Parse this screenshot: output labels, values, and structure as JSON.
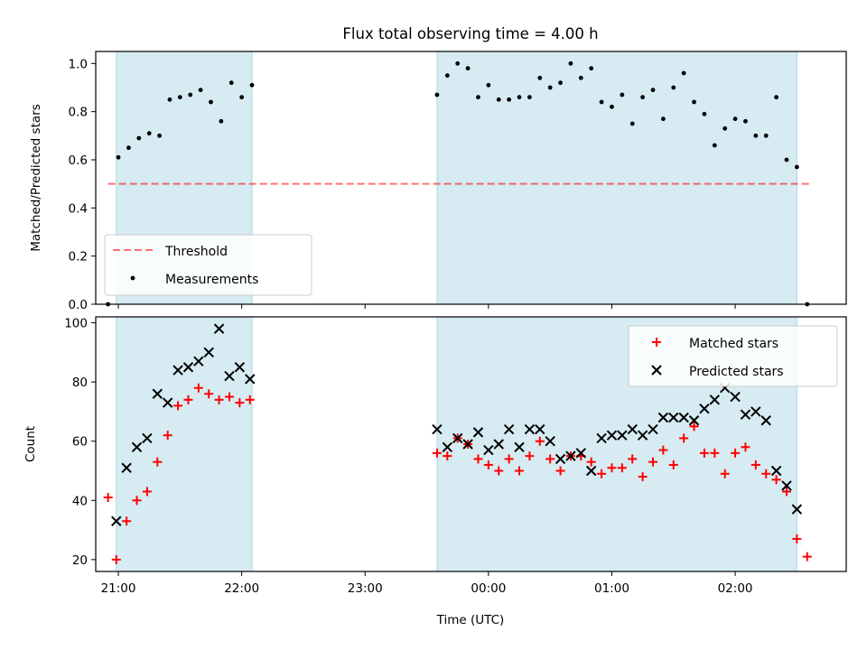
{
  "figure": {
    "title": "Flux total observing time = 4.00 h",
    "xlabel": "Time (UTC)"
  },
  "colors": {
    "shade": "#add8e6",
    "threshold": "#ff0000",
    "measurements": "#000000",
    "matched": "#ff0000",
    "predicted": "#000000"
  },
  "chart_data": [
    {
      "type": "scatter",
      "ylabel": "Matched/Predicted stars",
      "xlim": [
        "20:49",
        "02:54"
      ],
      "ylim": [
        0,
        1.05
      ],
      "yticks": [
        0.0,
        0.2,
        0.4,
        0.6,
        0.8,
        1.0
      ],
      "ytick_labels": [
        "0.0",
        "0.2",
        "0.4",
        "0.6",
        "0.8",
        "1.0"
      ],
      "xticks": [
        "21:00",
        "22:00",
        "23:00",
        "00:00",
        "01:00",
        "02:00"
      ],
      "legend": {
        "location": "lower-left",
        "entries": [
          "Threshold",
          "Measurements"
        ]
      },
      "shaded_intervals": [
        [
          "20:59",
          "22:05"
        ],
        [
          "23:35",
          "02:30"
        ]
      ],
      "threshold": {
        "name": "Threshold",
        "value": 0.5,
        "x_range": [
          "20:55",
          "02:36"
        ]
      },
      "series": [
        {
          "name": "Measurements",
          "x": [
            "20:55",
            "21:00",
            "21:05",
            "21:10",
            "21:15",
            "21:20",
            "21:25",
            "21:30",
            "21:35",
            "21:40",
            "21:45",
            "21:50",
            "21:55",
            "22:00",
            "22:05",
            "23:35",
            "23:40",
            "23:45",
            "23:50",
            "23:55",
            "00:00",
            "00:05",
            "00:10",
            "00:15",
            "00:20",
            "00:25",
            "00:30",
            "00:35",
            "00:40",
            "00:45",
            "00:50",
            "00:55",
            "01:00",
            "01:05",
            "01:10",
            "01:15",
            "01:20",
            "01:25",
            "01:30",
            "01:35",
            "01:40",
            "01:45",
            "01:50",
            "01:55",
            "02:00",
            "02:05",
            "02:10",
            "02:15",
            "02:20",
            "02:25",
            "02:30",
            "02:35"
          ],
          "y": [
            0.0,
            0.61,
            0.65,
            0.69,
            0.71,
            0.7,
            0.85,
            0.86,
            0.87,
            0.89,
            0.84,
            0.76,
            0.92,
            0.86,
            0.91,
            0.87,
            0.95,
            1.0,
            0.98,
            0.86,
            0.91,
            0.85,
            0.85,
            0.86,
            0.86,
            0.94,
            0.9,
            0.92,
            1.0,
            0.94,
            0.98,
            0.84,
            0.82,
            0.87,
            0.75,
            0.86,
            0.89,
            0.77,
            0.9,
            0.96,
            0.84,
            0.79,
            0.66,
            0.73,
            0.77,
            0.76,
            0.7,
            0.7,
            0.86,
            0.6,
            0.57,
            0.0
          ]
        }
      ]
    },
    {
      "type": "scatter",
      "ylabel": "Count",
      "xlabel": "Time (UTC)",
      "xlim": [
        "20:49",
        "02:54"
      ],
      "ylim": [
        16,
        102
      ],
      "yticks": [
        20,
        40,
        60,
        80,
        100
      ],
      "ytick_labels": [
        "20",
        "40",
        "60",
        "80",
        "100"
      ],
      "xticks": [
        "21:00",
        "22:00",
        "23:00",
        "00:00",
        "01:00",
        "02:00"
      ],
      "xtick_labels": [
        "21:00",
        "22:00",
        "23:00",
        "00:00",
        "01:00",
        "02:00"
      ],
      "legend": {
        "location": "top-right",
        "entries": [
          "Matched stars",
          "Predicted stars"
        ]
      },
      "shaded_intervals": [
        [
          "20:59",
          "22:05"
        ],
        [
          "23:35",
          "02:30"
        ]
      ],
      "series": [
        {
          "name": "Matched stars",
          "marker": "plus",
          "x": [
            "20:55",
            "20:59",
            "21:04",
            "21:09",
            "21:14",
            "21:19",
            "21:24",
            "21:29",
            "21:34",
            "21:39",
            "21:44",
            "21:49",
            "21:54",
            "21:59",
            "22:04",
            "23:35",
            "23:40",
            "23:45",
            "23:50",
            "23:55",
            "00:00",
            "00:05",
            "00:10",
            "00:15",
            "00:20",
            "00:25",
            "00:30",
            "00:35",
            "00:40",
            "00:45",
            "00:50",
            "00:55",
            "01:00",
            "01:05",
            "01:10",
            "01:15",
            "01:20",
            "01:25",
            "01:30",
            "01:35",
            "01:40",
            "01:45",
            "01:50",
            "01:55",
            "02:00",
            "02:05",
            "02:10",
            "02:15",
            "02:20",
            "02:25",
            "02:30",
            "02:35"
          ],
          "y": [
            41,
            20,
            33,
            40,
            43,
            53,
            62,
            72,
            74,
            78,
            76,
            74,
            75,
            73,
            74,
            56,
            55,
            61,
            59,
            54,
            52,
            50,
            54,
            50,
            55,
            60,
            54,
            50,
            55,
            55,
            53,
            49,
            51,
            51,
            54,
            48,
            53,
            57,
            52,
            61,
            65,
            56,
            56,
            49,
            56,
            58,
            52,
            49,
            47,
            43,
            27,
            21
          ]
        },
        {
          "name": "Predicted stars",
          "marker": "x",
          "x": [
            "20:59",
            "21:04",
            "21:09",
            "21:14",
            "21:19",
            "21:24",
            "21:29",
            "21:34",
            "21:39",
            "21:44",
            "21:49",
            "21:54",
            "21:59",
            "22:04",
            "23:35",
            "23:40",
            "23:45",
            "23:50",
            "23:55",
            "00:00",
            "00:05",
            "00:10",
            "00:15",
            "00:20",
            "00:25",
            "00:30",
            "00:35",
            "00:40",
            "00:45",
            "00:50",
            "00:55",
            "01:00",
            "01:05",
            "01:10",
            "01:15",
            "01:20",
            "01:25",
            "01:30",
            "01:35",
            "01:40",
            "01:45",
            "01:50",
            "01:55",
            "02:00",
            "02:05",
            "02:10",
            "02:15",
            "02:20",
            "02:25",
            "02:30"
          ],
          "y": [
            33,
            51,
            58,
            61,
            76,
            73,
            84,
            85,
            87,
            90,
            98,
            82,
            85,
            81,
            64,
            58,
            61,
            59,
            63,
            57,
            59,
            64,
            58,
            64,
            64,
            60,
            54,
            55,
            56,
            50,
            61,
            62,
            62,
            64,
            62,
            64,
            68,
            68,
            68,
            67,
            71,
            74,
            78,
            75,
            69,
            70,
            67,
            50,
            45,
            37
          ]
        }
      ]
    }
  ]
}
